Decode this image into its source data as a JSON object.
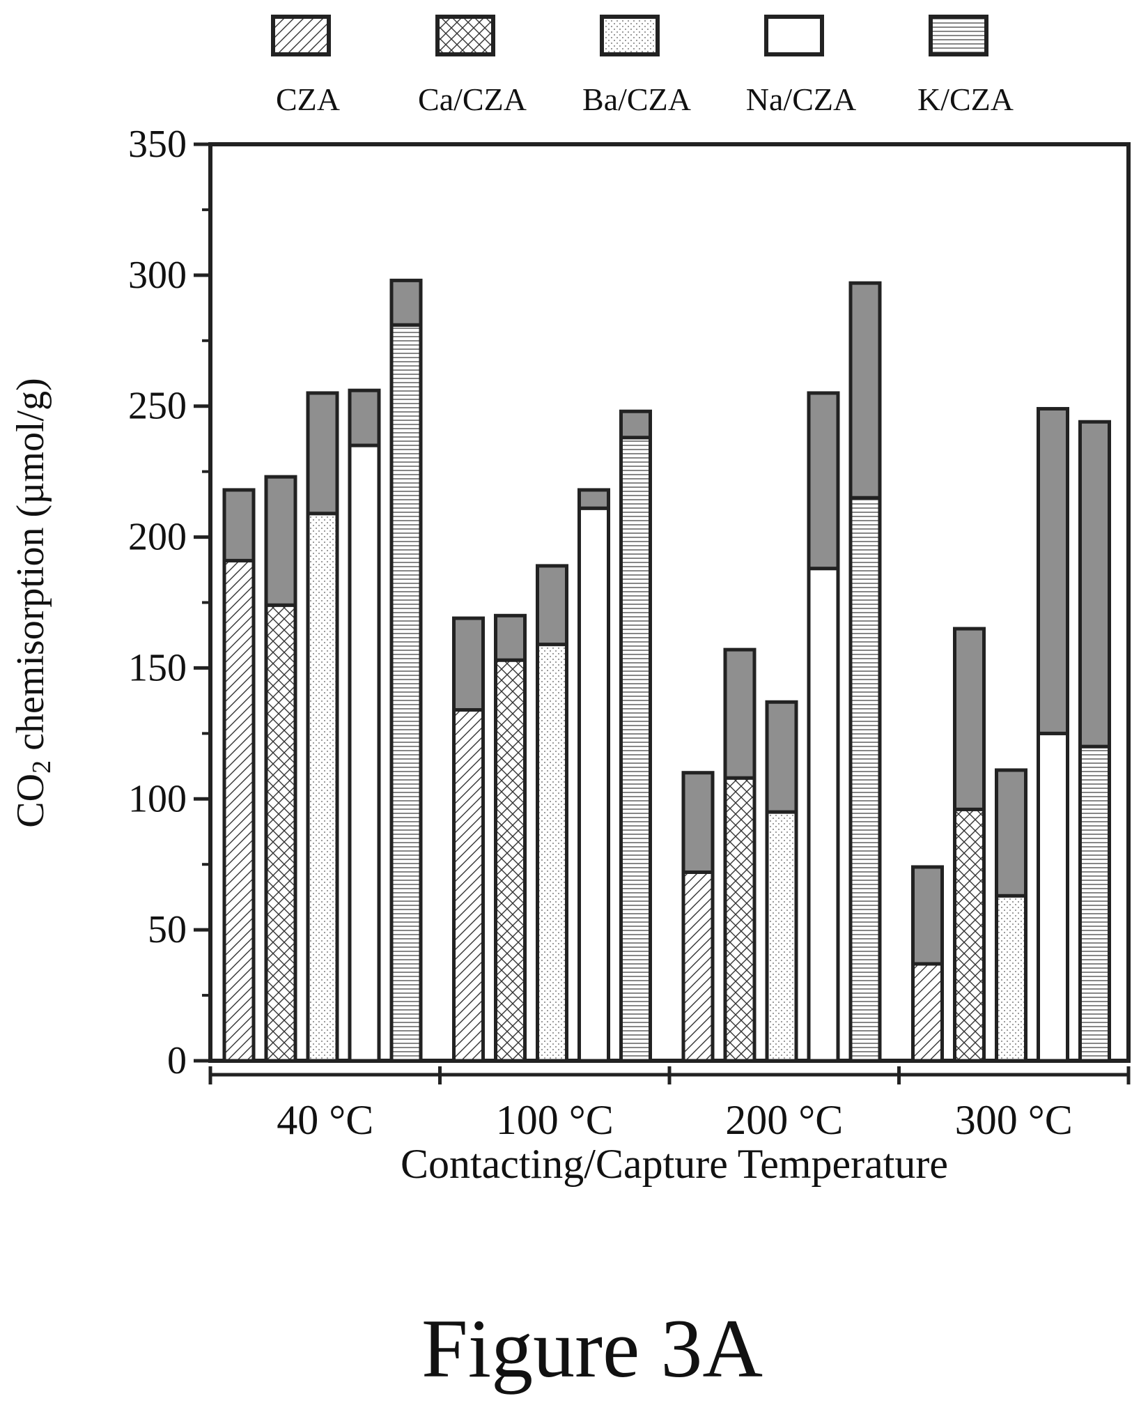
{
  "chart_data": {
    "type": "bar",
    "stacked": true,
    "categories": [
      "40 °C",
      "100 °C",
      "200 °C",
      "300 °C"
    ],
    "series": [
      {
        "name": "CZA",
        "pattern": "diagonal-hatch",
        "base": [
          191,
          134,
          72,
          37
        ],
        "total": [
          218,
          169,
          110,
          74
        ]
      },
      {
        "name": "Ca/CZA",
        "pattern": "cross-hatch",
        "base": [
          174,
          153,
          108,
          96
        ],
        "total": [
          223,
          170,
          157,
          165
        ]
      },
      {
        "name": "Ba/CZA",
        "pattern": "fine-dots",
        "base": [
          209,
          159,
          95,
          63
        ],
        "total": [
          255,
          189,
          137,
          111
        ]
      },
      {
        "name": "Na/CZA",
        "pattern": "empty",
        "base": [
          235,
          211,
          188,
          125
        ],
        "total": [
          256,
          218,
          255,
          249
        ]
      },
      {
        "name": "K/CZA",
        "pattern": "horizontal-lines",
        "base": [
          281,
          238,
          215,
          120
        ],
        "total": [
          298,
          248,
          297,
          244
        ]
      }
    ],
    "xlabel": "Contacting/Capture Temperature",
    "ylabel_main": "CO",
    "ylabel_sub": "2",
    "ylabel_rest": " chemisorption (µmol/g)",
    "ylim": [
      0,
      350
    ],
    "yticks": [
      0,
      50,
      100,
      150,
      200,
      250,
      300,
      350
    ],
    "legend_position": "top",
    "colors": {
      "upper_segment": "#8f8f8f",
      "stroke": "#222222"
    }
  },
  "figure_label": "Figure 3A"
}
